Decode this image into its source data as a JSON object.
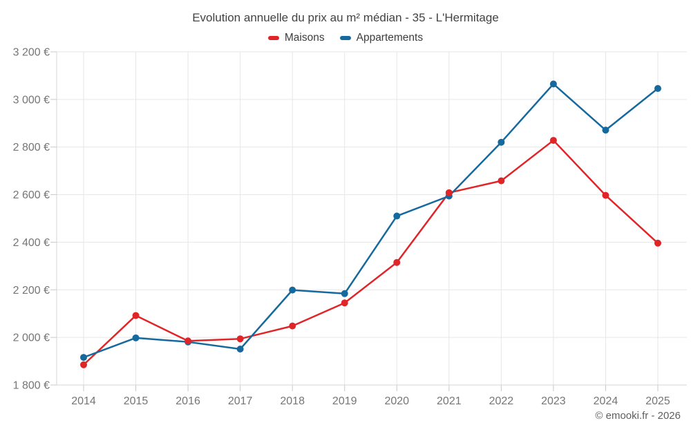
{
  "chart_data": {
    "type": "line",
    "title": "Evolution annuelle du prix au m² médian - 35 - L'Hermitage",
    "xlabel": "",
    "ylabel": "",
    "categories": [
      "2014",
      "2015",
      "2016",
      "2017",
      "2018",
      "2019",
      "2020",
      "2021",
      "2022",
      "2023",
      "2024",
      "2025"
    ],
    "series": [
      {
        "name": "Maisons",
        "color": "#e02529",
        "values": [
          1885,
          2092,
          1985,
          1994,
          2048,
          2145,
          2315,
          2608,
          2658,
          2828,
          2597,
          2396
        ]
      },
      {
        "name": "Appartements",
        "color": "#15699c",
        "values": [
          1916,
          1998,
          1981,
          1951,
          2199,
          2184,
          2510,
          2594,
          2820,
          3065,
          2871,
          3046
        ]
      }
    ],
    "ylim": [
      1800,
      3200
    ],
    "ytick_step": 200,
    "ytick_labels": [
      "1 800 €",
      "2 000 €",
      "2 200 €",
      "2 400 €",
      "2 600 €",
      "2 800 €",
      "3 000 €",
      "3 200 €"
    ],
    "grid": true,
    "legend_position": "top",
    "footer": "© emooki.fr - 2026",
    "colors": {
      "grid": "#e6e6e6",
      "axis": "#d4d4d4",
      "tick": "#c8c8c8",
      "tick_label": "#757575",
      "title": "#424242",
      "legend_label": "#3d3d3d",
      "footer": "#5e5e5e",
      "background": "#ffffff"
    }
  }
}
